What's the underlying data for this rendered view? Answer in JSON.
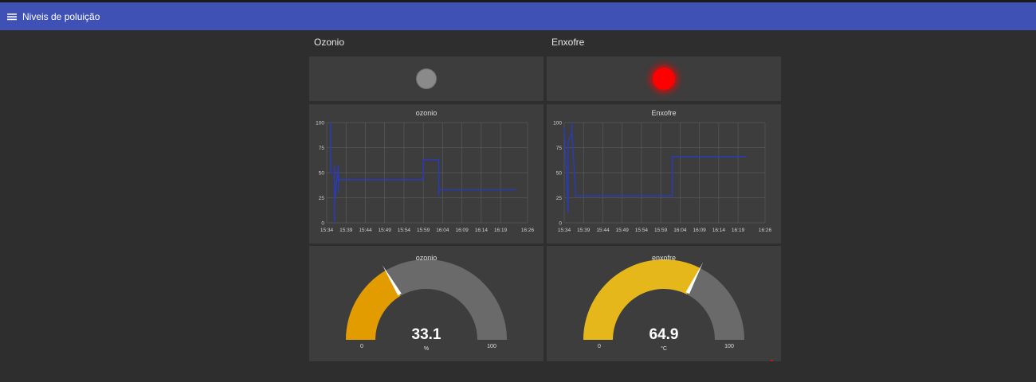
{
  "app": {
    "title": "Niveis de poluição"
  },
  "groups": [
    {
      "title": "Ozonio",
      "led": {
        "state": "off",
        "color": "#8a8a8a"
      },
      "chart": {
        "label": "ozonio"
      },
      "gauge": {
        "label": "ozonio",
        "value": "33.1",
        "unit": "%",
        "min": "0",
        "max": "100",
        "fill_color": "#e39c00"
      }
    },
    {
      "title": "Enxofre",
      "led": {
        "state": "on",
        "color": "#ff0000"
      },
      "chart": {
        "label": "Enxofre"
      },
      "gauge": {
        "label": "enxofre",
        "value": "64.9",
        "unit": "°C",
        "min": "0",
        "max": "100",
        "fill_color": "#e6b71a"
      }
    }
  ],
  "colors": {
    "header": "#3f51b5",
    "background": "#2e2e2e",
    "card": "#3d3d3d",
    "series": "#2a3bb5"
  },
  "chart_data": [
    {
      "type": "line",
      "title": "ozonio",
      "xlabel": "",
      "ylabel": "",
      "x_ticks": [
        "15:34",
        "15:39",
        "15:44",
        "15:49",
        "15:54",
        "15:59",
        "16:04",
        "16:09",
        "16:14",
        "16:19",
        "16:26"
      ],
      "y_ticks": [
        "0",
        "25",
        "50",
        "75",
        "100"
      ],
      "xlim": [
        "15:34",
        "16:26"
      ],
      "ylim": [
        0,
        100
      ],
      "grid": true,
      "series": [
        {
          "points": [
            [
              "15:35",
              100
            ],
            [
              "15:35",
              97
            ],
            [
              "15:35",
              50
            ],
            [
              "15:36",
              50
            ],
            [
              "15:36",
              0
            ],
            [
              "15:36",
              58
            ],
            [
              "15:36",
              20
            ],
            [
              "15:37",
              57
            ],
            [
              "15:37",
              30
            ],
            [
              "15:37",
              43
            ],
            [
              "15:59",
              43
            ],
            [
              "15:59",
              63
            ],
            [
              "16:03",
              63
            ],
            [
              "16:03",
              27
            ],
            [
              "16:03",
              34
            ],
            [
              "16:03",
              33
            ],
            [
              "16:23",
              33
            ]
          ]
        }
      ]
    },
    {
      "type": "line",
      "title": "Enxofre",
      "xlabel": "",
      "ylabel": "",
      "x_ticks": [
        "15:34",
        "15:39",
        "15:44",
        "15:49",
        "15:54",
        "15:59",
        "16:04",
        "16:09",
        "16:14",
        "16:19",
        "16:26"
      ],
      "y_ticks": [
        "0",
        "25",
        "50",
        "75",
        "100"
      ],
      "xlim": [
        "15:34",
        "16:26"
      ],
      "ylim": [
        0,
        100
      ],
      "grid": true,
      "series": [
        {
          "points": [
            [
              "15:34",
              95
            ],
            [
              "15:35",
              10
            ],
            [
              "15:35",
              80
            ],
            [
              "15:36",
              90
            ],
            [
              "15:36",
              100
            ],
            [
              "15:36",
              90
            ],
            [
              "15:37",
              27
            ],
            [
              "16:02",
              27
            ],
            [
              "16:02",
              66
            ],
            [
              "16:21",
              66
            ]
          ]
        }
      ]
    }
  ]
}
